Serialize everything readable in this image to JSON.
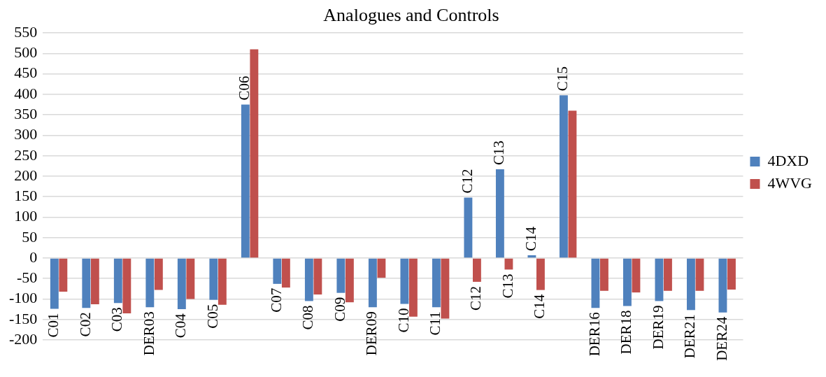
{
  "chart_data": {
    "type": "bar",
    "title": "Analogues and Controls",
    "categories": [
      "C01",
      "C02",
      "C03",
      "DER03",
      "C04",
      "C05",
      "C06",
      "C07",
      "C08",
      "C09",
      "DER09",
      "C10",
      "C11",
      "C12",
      "C13",
      "C14",
      "C15",
      "DER16",
      "DER18",
      "DER19",
      "DER21",
      "DER24"
    ],
    "series": [
      {
        "name": "4DXD",
        "color": "#4f81bd",
        "values": [
          -124,
          -122,
          -110,
          -120,
          -125,
          -102,
          375,
          -63,
          -105,
          -85,
          -120,
          -112,
          -120,
          148,
          217,
          7,
          398,
          -122,
          -117,
          -105,
          -127,
          -133
        ]
      },
      {
        "name": "4WVG",
        "color": "#c0504d",
        "values": [
          -82,
          -113,
          -135,
          -78,
          -100,
          -114,
          510,
          -72,
          -89,
          -108,
          -48,
          -143,
          -148,
          -58,
          -28,
          -78,
          360,
          -80,
          -84,
          -80,
          -80,
          -77
        ],
        "value_labels": [
          null,
          null,
          null,
          null,
          null,
          null,
          null,
          null,
          null,
          null,
          null,
          null,
          null,
          "C12",
          "C13",
          "C14",
          null,
          null,
          null,
          null,
          null,
          null
        ]
      }
    ],
    "ylim": [
      -200,
      550
    ],
    "yticks": [
      -200,
      -150,
      -100,
      -50,
      0,
      50,
      100,
      150,
      200,
      250,
      300,
      350,
      400,
      450,
      500,
      550
    ],
    "grid": "y",
    "legend": "right",
    "tick_labels": "y"
  }
}
